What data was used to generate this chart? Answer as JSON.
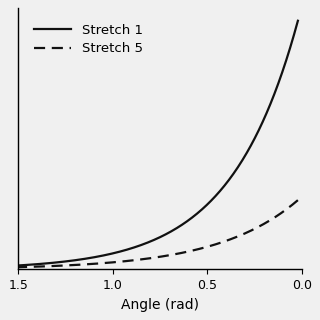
{
  "title": "",
  "xlabel": "Angle (rad)",
  "ylabel": "",
  "x_ticks": [
    1.5,
    1.0,
    0.5,
    0.0
  ],
  "x_tick_labels": [
    "1.5",
    "1.0",
    "0.5",
    "0.0"
  ],
  "legend": [
    {
      "label": "Stretch 1",
      "linestyle": "solid"
    },
    {
      "label": "Stretch 5",
      "linestyle": "dashed"
    }
  ],
  "line_color": "#111111",
  "line_width": 1.6,
  "background_color": "#f0f0f0",
  "legend_fontsize": 9.5,
  "xlabel_fontsize": 10,
  "tick_fontsize": 9
}
